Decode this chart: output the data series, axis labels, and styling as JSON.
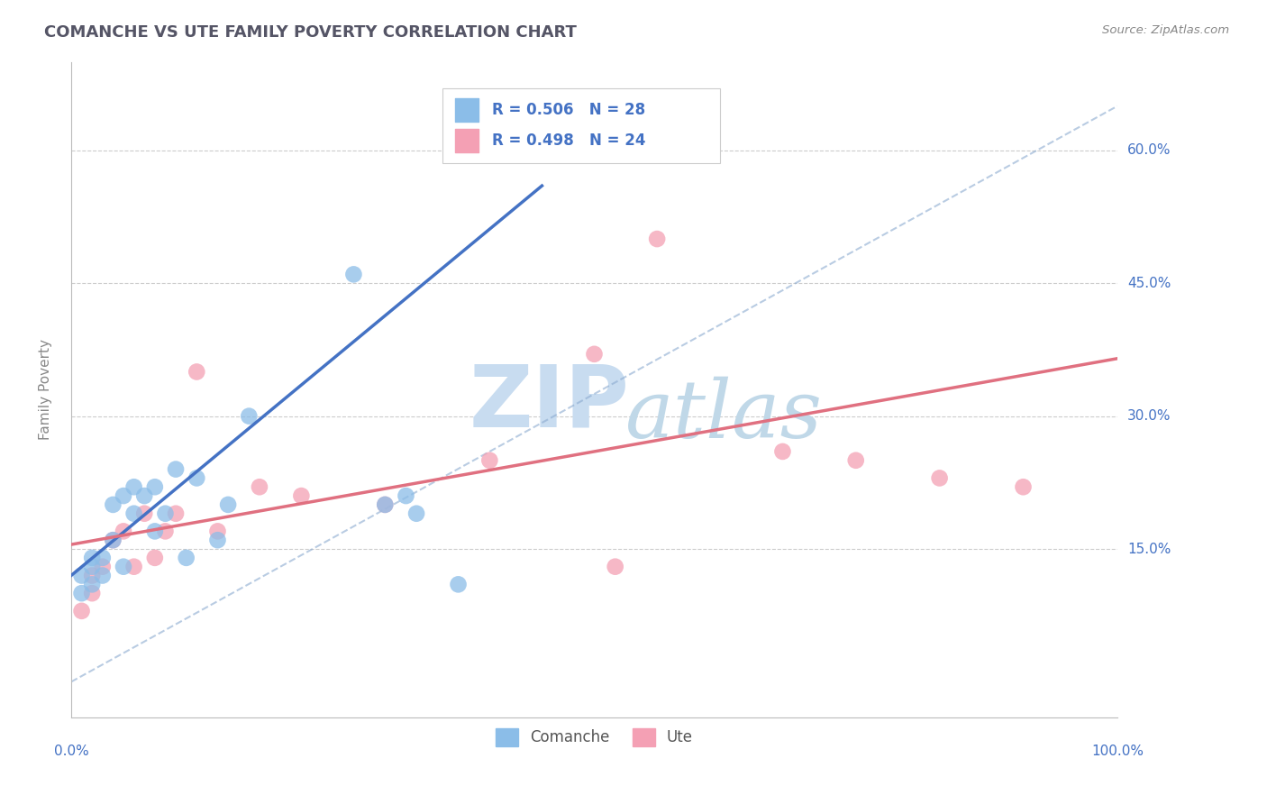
{
  "title": "COMANCHE VS UTE FAMILY POVERTY CORRELATION CHART",
  "source": "Source: ZipAtlas.com",
  "ylabel": "Family Poverty",
  "y_ticks": [
    0.0,
    0.15,
    0.3,
    0.45,
    0.6
  ],
  "y_tick_labels": [
    "",
    "15.0%",
    "30.0%",
    "45.0%",
    "60.0%"
  ],
  "xlim": [
    0.0,
    1.0
  ],
  "ylim": [
    -0.04,
    0.7
  ],
  "comanche_R": 0.506,
  "comanche_N": 28,
  "ute_R": 0.498,
  "ute_N": 24,
  "comanche_color": "#8BBDE8",
  "ute_color": "#F4A0B4",
  "comanche_line_color": "#4472C4",
  "ute_line_color": "#E07080",
  "ref_line_color": "#8BAAD0",
  "legend_label_comanche": "Comanche",
  "legend_label_ute": "Ute",
  "comanche_points_x": [
    0.01,
    0.01,
    0.02,
    0.02,
    0.02,
    0.03,
    0.03,
    0.04,
    0.04,
    0.05,
    0.05,
    0.06,
    0.06,
    0.07,
    0.08,
    0.08,
    0.09,
    0.1,
    0.11,
    0.12,
    0.14,
    0.15,
    0.17,
    0.27,
    0.3,
    0.32,
    0.33,
    0.37
  ],
  "comanche_points_y": [
    0.1,
    0.12,
    0.11,
    0.13,
    0.14,
    0.12,
    0.14,
    0.16,
    0.2,
    0.13,
    0.21,
    0.19,
    0.22,
    0.21,
    0.17,
    0.22,
    0.19,
    0.24,
    0.14,
    0.23,
    0.16,
    0.2,
    0.3,
    0.46,
    0.2,
    0.21,
    0.19,
    0.11
  ],
  "ute_points_x": [
    0.01,
    0.02,
    0.02,
    0.03,
    0.04,
    0.05,
    0.06,
    0.07,
    0.08,
    0.09,
    0.1,
    0.12,
    0.14,
    0.18,
    0.22,
    0.3,
    0.4,
    0.5,
    0.52,
    0.56,
    0.68,
    0.75,
    0.83,
    0.91
  ],
  "ute_points_y": [
    0.08,
    0.1,
    0.12,
    0.13,
    0.16,
    0.17,
    0.13,
    0.19,
    0.14,
    0.17,
    0.19,
    0.35,
    0.17,
    0.22,
    0.21,
    0.2,
    0.25,
    0.37,
    0.13,
    0.5,
    0.26,
    0.25,
    0.23,
    0.22
  ],
  "comanche_line_x0": 0.0,
  "comanche_line_y0": 0.12,
  "comanche_line_x1": 0.45,
  "comanche_line_y1": 0.56,
  "ute_line_x0": 0.0,
  "ute_line_y0": 0.155,
  "ute_line_x1": 1.0,
  "ute_line_y1": 0.365,
  "ref_line_x0": 0.0,
  "ref_line_y0": 0.0,
  "ref_line_x1": 1.0,
  "ref_line_y1": 0.65,
  "background_color": "#FFFFFF",
  "watermark_zip": "ZIP",
  "watermark_atlas": "atlas",
  "watermark_color_zip": "#C8DCF0",
  "watermark_color_atlas": "#C0D8E8",
  "grid_color": "#CCCCCC",
  "title_color": "#555566",
  "tick_label_color": "#4472C4",
  "ylabel_color": "#888888",
  "source_color": "#888888"
}
